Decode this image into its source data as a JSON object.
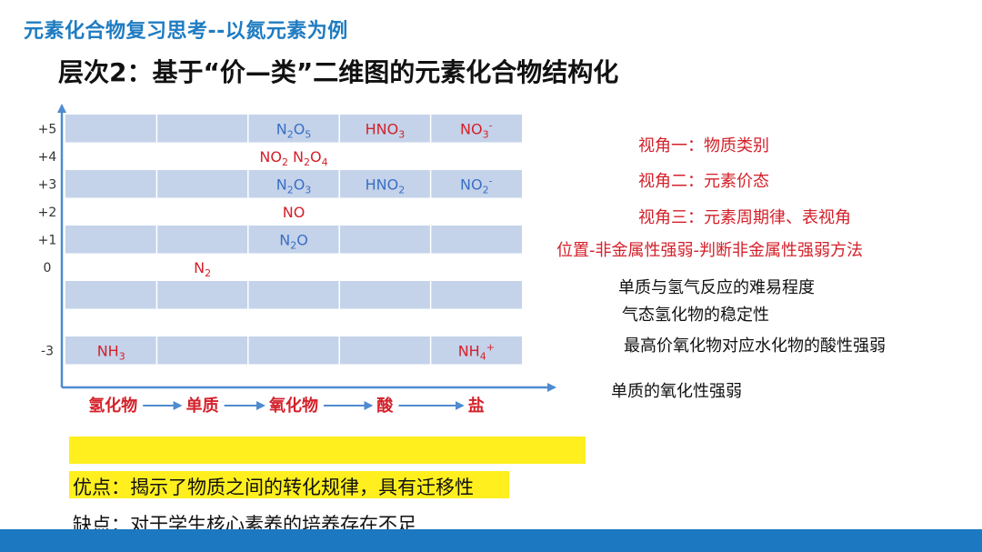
{
  "slide": {
    "topic_title": "元素化合物复习思考--以氮元素为例",
    "level_title": "层次2：基于“价—类”二维图的元素化合物结构化"
  },
  "chart_data": {
    "type": "table",
    "y_ticks": [
      "+5",
      "+4",
      "+3",
      "+2",
      "+1",
      "0",
      "",
      "",
      "-3"
    ],
    "x_categories": [
      "氢化物",
      "单质",
      "氧化物",
      "酸",
      "盐"
    ],
    "compounds": [
      {
        "row": 0,
        "col": 2,
        "parts": [
          [
            "N",
            ""
          ],
          [
            "2",
            "sub"
          ],
          [
            "O",
            ""
          ],
          [
            "5",
            "sub"
          ]
        ],
        "color": "blue"
      },
      {
        "row": 0,
        "col": 3,
        "parts": [
          [
            "HNO",
            ""
          ],
          [
            "3",
            "sub"
          ]
        ],
        "color": "red"
      },
      {
        "row": 0,
        "col": 4,
        "parts": [
          [
            "NO",
            ""
          ],
          [
            "3",
            "sub"
          ],
          [
            "-",
            "sup"
          ]
        ],
        "color": "red"
      },
      {
        "row": 1,
        "col": 2,
        "parts": [
          [
            "NO",
            ""
          ],
          [
            "2",
            "sub"
          ],
          [
            "  N",
            ""
          ],
          [
            "2",
            "sub"
          ],
          [
            "O",
            ""
          ],
          [
            "4",
            "sub"
          ]
        ],
        "color": "red"
      },
      {
        "row": 2,
        "col": 2,
        "parts": [
          [
            "N",
            ""
          ],
          [
            "2",
            "sub"
          ],
          [
            "O",
            ""
          ],
          [
            "3",
            "sub"
          ]
        ],
        "color": "blue"
      },
      {
        "row": 2,
        "col": 3,
        "parts": [
          [
            "HNO",
            ""
          ],
          [
            "2",
            "sub"
          ]
        ],
        "color": "blue"
      },
      {
        "row": 2,
        "col": 4,
        "parts": [
          [
            "NO",
            ""
          ],
          [
            "2",
            "sub"
          ],
          [
            "-",
            "sup"
          ]
        ],
        "color": "blue"
      },
      {
        "row": 3,
        "col": 2,
        "parts": [
          [
            "NO",
            ""
          ]
        ],
        "color": "red"
      },
      {
        "row": 4,
        "col": 2,
        "parts": [
          [
            "N",
            ""
          ],
          [
            "2",
            "sub"
          ],
          [
            "O",
            ""
          ]
        ],
        "color": "blue"
      },
      {
        "row": 5,
        "col": 1,
        "parts": [
          [
            "N",
            ""
          ],
          [
            "2",
            "sub"
          ]
        ],
        "color": "red"
      },
      {
        "row": 8,
        "col": 0,
        "parts": [
          [
            "NH",
            ""
          ],
          [
            "3",
            "sub"
          ]
        ],
        "color": "red"
      },
      {
        "row": 8,
        "col": 4,
        "parts": [
          [
            "NH",
            ""
          ],
          [
            "4",
            "sub"
          ],
          [
            "+",
            "sup"
          ]
        ],
        "color": "red"
      }
    ]
  },
  "colors": {
    "title_blue": "#1f7cc1",
    "red": "#d4202a",
    "blue": "#3a6fc4",
    "band": "#c4d3ea",
    "axis": "#4f8bd0",
    "highlight": "#ffef1e",
    "bottom_bar": "#1b78c1"
  },
  "perspectives": {
    "p1": "视角一：物质类别",
    "p2": "视角二：元素价态",
    "p3": "视角三：元素周期律、表视角",
    "p4": "位置-非金属性强弱-判断非金属性强弱方法"
  },
  "methods": {
    "m1": "单质与氢气反应的难易程度",
    "m2": "气态氢化物的稳定性",
    "m3": "最高价氧化物对应水化物的酸性强弱",
    "m4": "单质的氧化性强弱"
  },
  "summary": {
    "merit": "优点：揭示了物质之间的转化规律，具有迁移性",
    "demerit": "缺点：对于学生核心素养的培养存在不足"
  }
}
